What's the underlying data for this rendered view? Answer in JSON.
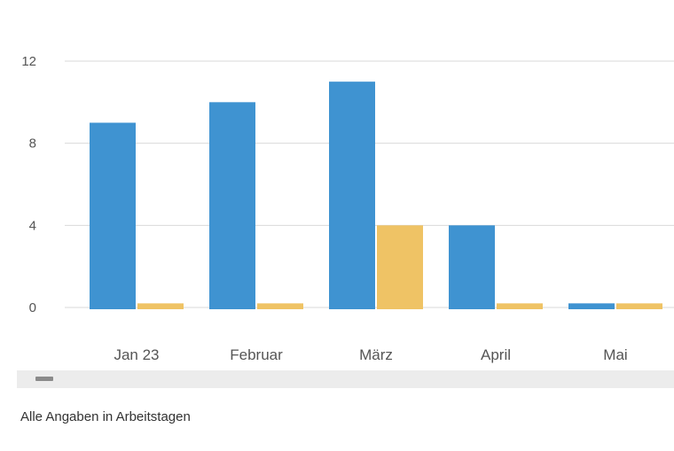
{
  "chart_data": {
    "type": "bar",
    "categories": [
      "Jan 23",
      "Februar",
      "März",
      "April",
      "Mai"
    ],
    "series": [
      {
        "values": [
          9,
          10,
          11,
          4,
          0.2
        ]
      },
      {
        "values": [
          0.2,
          0.2,
          4,
          0.2,
          0.2
        ]
      }
    ],
    "ylim": [
      0,
      12
    ],
    "yticks": [
      0,
      4,
      8,
      12
    ],
    "ytick_labels": [
      "0",
      "4",
      "8",
      "12"
    ],
    "grid": true,
    "legend": "none"
  },
  "colors": {
    "series_1": "#3f93d1",
    "series_2": "#efc365",
    "grid": "#d9d9d9",
    "tick_text": "#555555"
  },
  "footnote": "Alle Angaben in Arbeitstagen"
}
